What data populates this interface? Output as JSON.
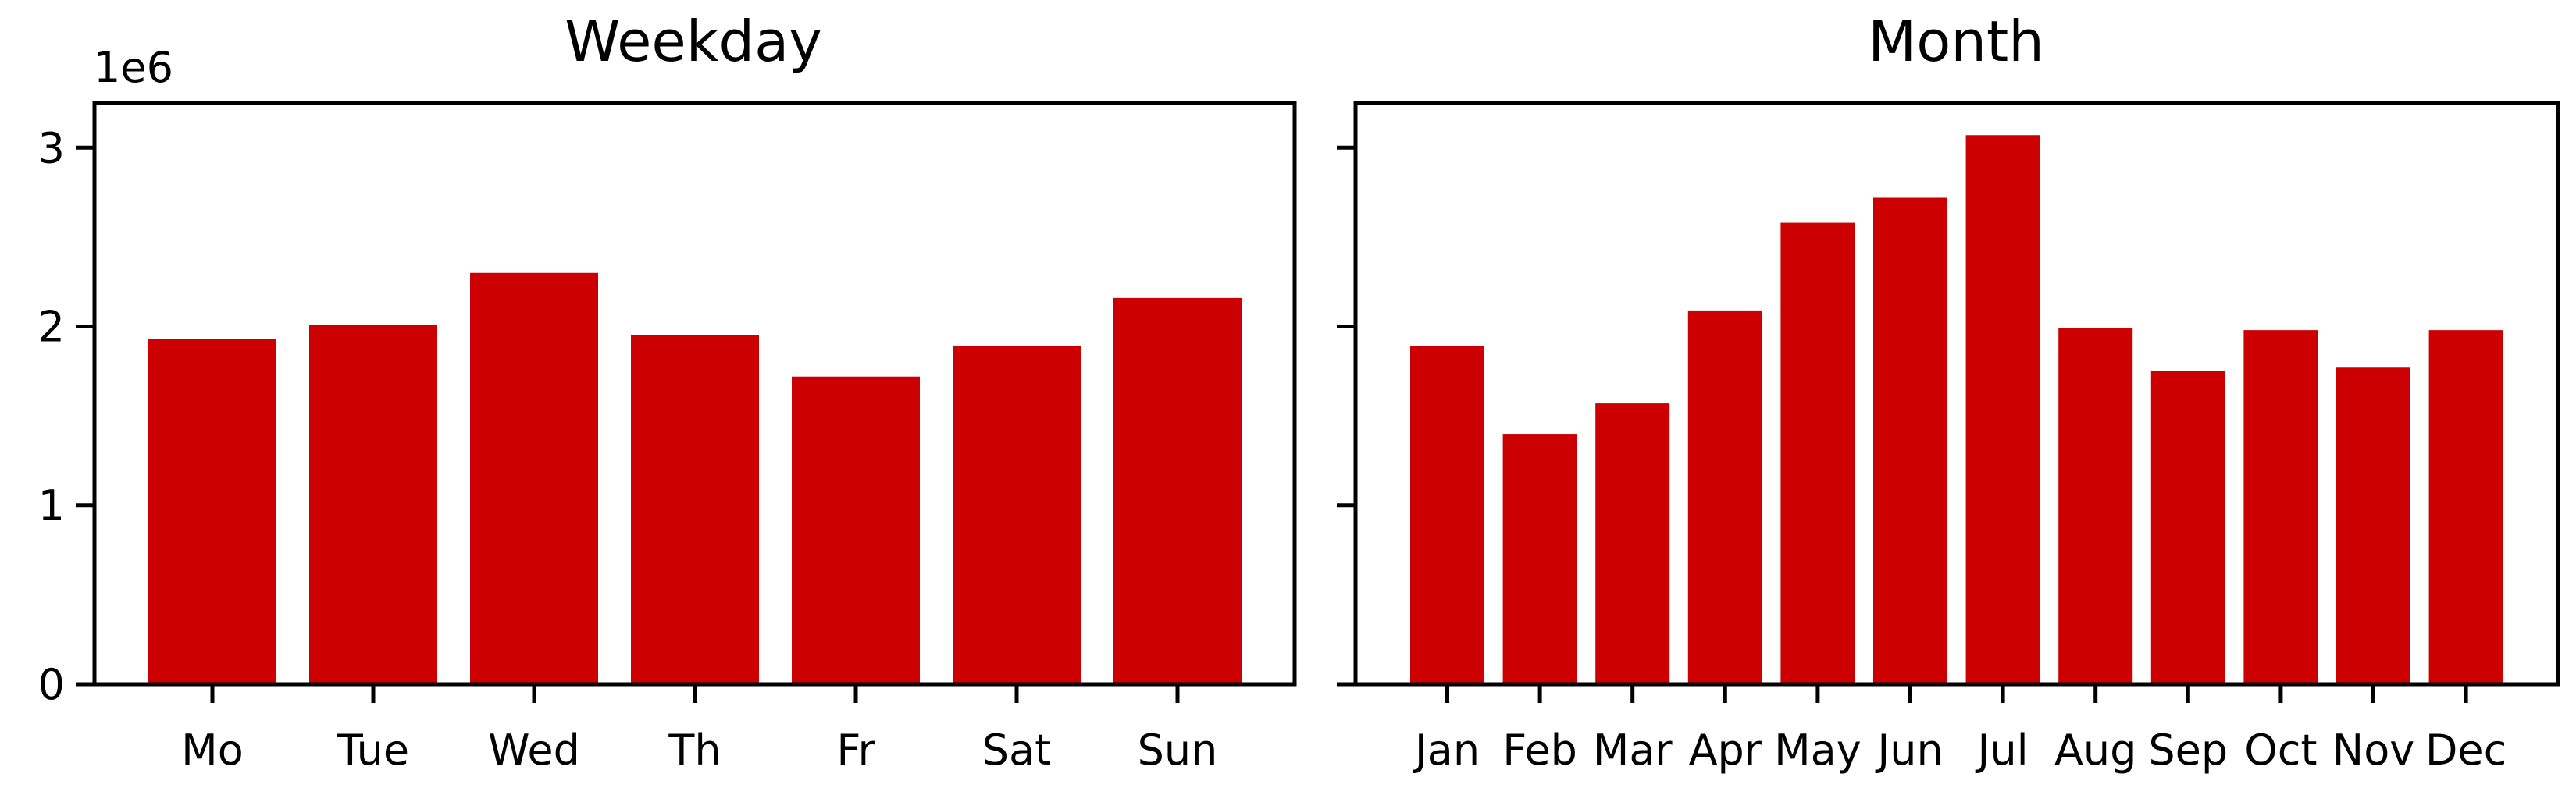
{
  "chart_data": [
    {
      "type": "bar",
      "title": "Weekday",
      "categories": [
        "Mo",
        "Tue",
        "Wed",
        "Th",
        "Fr",
        "Sat",
        "Sun"
      ],
      "values": [
        1930000,
        2010000,
        2300000,
        1950000,
        1720000,
        1890000,
        2160000
      ],
      "ylim": [
        0,
        3250000
      ],
      "yticks": [
        0,
        1,
        2,
        3
      ],
      "y_offset_label": "1e6",
      "xlabel": "",
      "ylabel": "",
      "bar_color": "#cc0000",
      "grid": false
    },
    {
      "type": "bar",
      "title": "Month",
      "categories": [
        "Jan",
        "Feb",
        "Mar",
        "Apr",
        "May",
        "Jun",
        "Jul",
        "Aug",
        "Sep",
        "Oct",
        "Nov",
        "Dec"
      ],
      "values": [
        1890000,
        1400000,
        1570000,
        2090000,
        2580000,
        2720000,
        3070000,
        1990000,
        1750000,
        1980000,
        1770000,
        1980000
      ],
      "ylim": [
        0,
        3250000
      ],
      "shared_y": true,
      "xlabel": "",
      "ylabel": "",
      "bar_color": "#cc0000",
      "grid": false
    }
  ]
}
